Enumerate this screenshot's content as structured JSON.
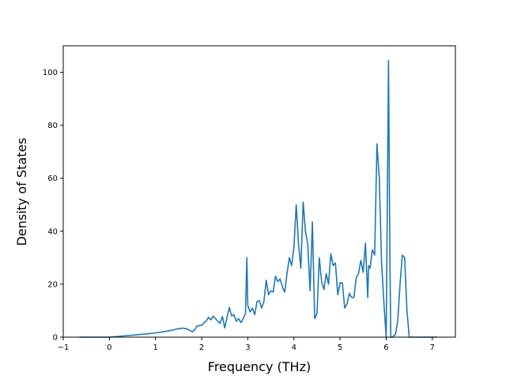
{
  "chart_data": {
    "type": "line",
    "title": "",
    "xlabel": "Frequency (THz)",
    "ylabel": "Density of States",
    "xlim": [
      -1,
      7.5
    ],
    "ylim": [
      0,
      110
    ],
    "xticks": [
      -1,
      0,
      1,
      2,
      3,
      4,
      5,
      6,
      7
    ],
    "xtick_labels": [
      "−1",
      "0",
      "1",
      "2",
      "3",
      "4",
      "5",
      "6",
      "7"
    ],
    "yticks": [
      0,
      20,
      40,
      60,
      80,
      100
    ],
    "ytick_labels": [
      "0",
      "20",
      "40",
      "60",
      "80",
      "100"
    ],
    "grid": false,
    "legend": "none",
    "line_color": "#1f77b4",
    "series": [
      {
        "x": [
          -0.65,
          -0.4,
          -0.2,
          0.0,
          0.2,
          0.4,
          0.6,
          0.8,
          1.0,
          1.2,
          1.4,
          1.5,
          1.6,
          1.7,
          1.75,
          1.8,
          1.85,
          1.9,
          2.0,
          2.1,
          2.15,
          2.2,
          2.25,
          2.3,
          2.35,
          2.4,
          2.45,
          2.5,
          2.55,
          2.6,
          2.65,
          2.7,
          2.75,
          2.8,
          2.85,
          2.9,
          2.95,
          2.98,
          3.0,
          3.05,
          3.1,
          3.15,
          3.2,
          3.25,
          3.3,
          3.35,
          3.4,
          3.45,
          3.5,
          3.55,
          3.6,
          3.65,
          3.7,
          3.75,
          3.8,
          3.85,
          3.9,
          3.95,
          4.0,
          4.05,
          4.1,
          4.15,
          4.2,
          4.25,
          4.3,
          4.35,
          4.4,
          4.45,
          4.5,
          4.55,
          4.6,
          4.65,
          4.7,
          4.75,
          4.8,
          4.85,
          4.9,
          4.95,
          5.0,
          5.05,
          5.1,
          5.15,
          5.2,
          5.25,
          5.3,
          5.35,
          5.4,
          5.45,
          5.5,
          5.55,
          5.6,
          5.62,
          5.65,
          5.7,
          5.75,
          5.8,
          5.85,
          5.9,
          5.95,
          6.0,
          6.05,
          6.08,
          6.1,
          6.13,
          6.2,
          6.25,
          6.3,
          6.35,
          6.4,
          6.45,
          6.5,
          6.55,
          6.6,
          7.0,
          7.1
        ],
        "y": [
          0,
          0,
          0,
          0,
          0.3,
          0.6,
          0.9,
          1.2,
          1.6,
          2.1,
          2.8,
          3.2,
          3.4,
          3.0,
          2.4,
          2.0,
          2.8,
          4.2,
          4.5,
          6.2,
          7.5,
          6.5,
          8.0,
          7.0,
          6.0,
          5.2,
          7.8,
          3.5,
          7.5,
          11.2,
          8.0,
          8.5,
          6.0,
          7.0,
          5.5,
          7.0,
          9.0,
          30.0,
          12.0,
          9.5,
          11.0,
          8.5,
          13.5,
          13.8,
          11.0,
          13.5,
          21.5,
          16.0,
          17.5,
          17.0,
          23.0,
          21.0,
          22.0,
          19.0,
          17.0,
          24.0,
          30.0,
          27.0,
          34.0,
          50.0,
          35.0,
          26.0,
          51.0,
          40.0,
          35.0,
          17.5,
          43.5,
          7.0,
          9.0,
          30.0,
          21.0,
          18.0,
          24.0,
          20.0,
          31.5,
          27.0,
          28.0,
          16.0,
          20.5,
          20.5,
          11.0,
          12.5,
          16.5,
          15.0,
          15.0,
          22.5,
          24.0,
          29.0,
          24.5,
          35.5,
          15.0,
          27.0,
          26.0,
          33.0,
          31.0,
          73.0,
          60.0,
          28.0,
          13.0,
          0.0,
          104.5,
          30.0,
          0.0,
          0.0,
          1.0,
          6.0,
          20.0,
          31.0,
          30.0,
          10.0,
          0,
          0,
          0,
          0,
          0
        ]
      }
    ]
  }
}
